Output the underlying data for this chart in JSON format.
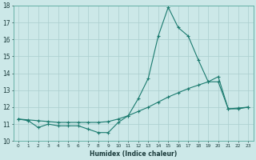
{
  "x": [
    0,
    1,
    2,
    3,
    4,
    5,
    6,
    7,
    8,
    9,
    10,
    11,
    12,
    13,
    14,
    15,
    16,
    17,
    18,
    19,
    20,
    21,
    22,
    23
  ],
  "y_jagged": [
    11.3,
    11.2,
    10.8,
    11.0,
    10.9,
    10.9,
    10.9,
    10.7,
    10.5,
    10.5,
    11.1,
    11.5,
    12.5,
    13.7,
    16.2,
    17.9,
    16.7,
    16.2,
    14.8,
    13.5,
    13.8,
    11.9,
    11.9,
    12.0
  ],
  "y_smooth": [
    11.3,
    11.25,
    11.2,
    11.15,
    11.1,
    11.1,
    11.1,
    11.1,
    11.1,
    11.15,
    11.3,
    11.5,
    11.75,
    12.0,
    12.3,
    12.6,
    12.85,
    13.1,
    13.3,
    13.5,
    13.5,
    11.9,
    11.95,
    12.0
  ],
  "xlabel": "Humidex (Indice chaleur)",
  "xlim": [
    0,
    23
  ],
  "ylim": [
    10,
    18
  ],
  "yticks": [
    10,
    11,
    12,
    13,
    14,
    15,
    16,
    17,
    18
  ],
  "xticks": [
    0,
    1,
    2,
    3,
    4,
    5,
    6,
    7,
    8,
    9,
    10,
    11,
    12,
    13,
    14,
    15,
    16,
    17,
    18,
    19,
    20,
    21,
    22,
    23
  ],
  "line_color": "#1a7a6e",
  "bg_color": "#cce8e8",
  "grid_color": "#aacece"
}
